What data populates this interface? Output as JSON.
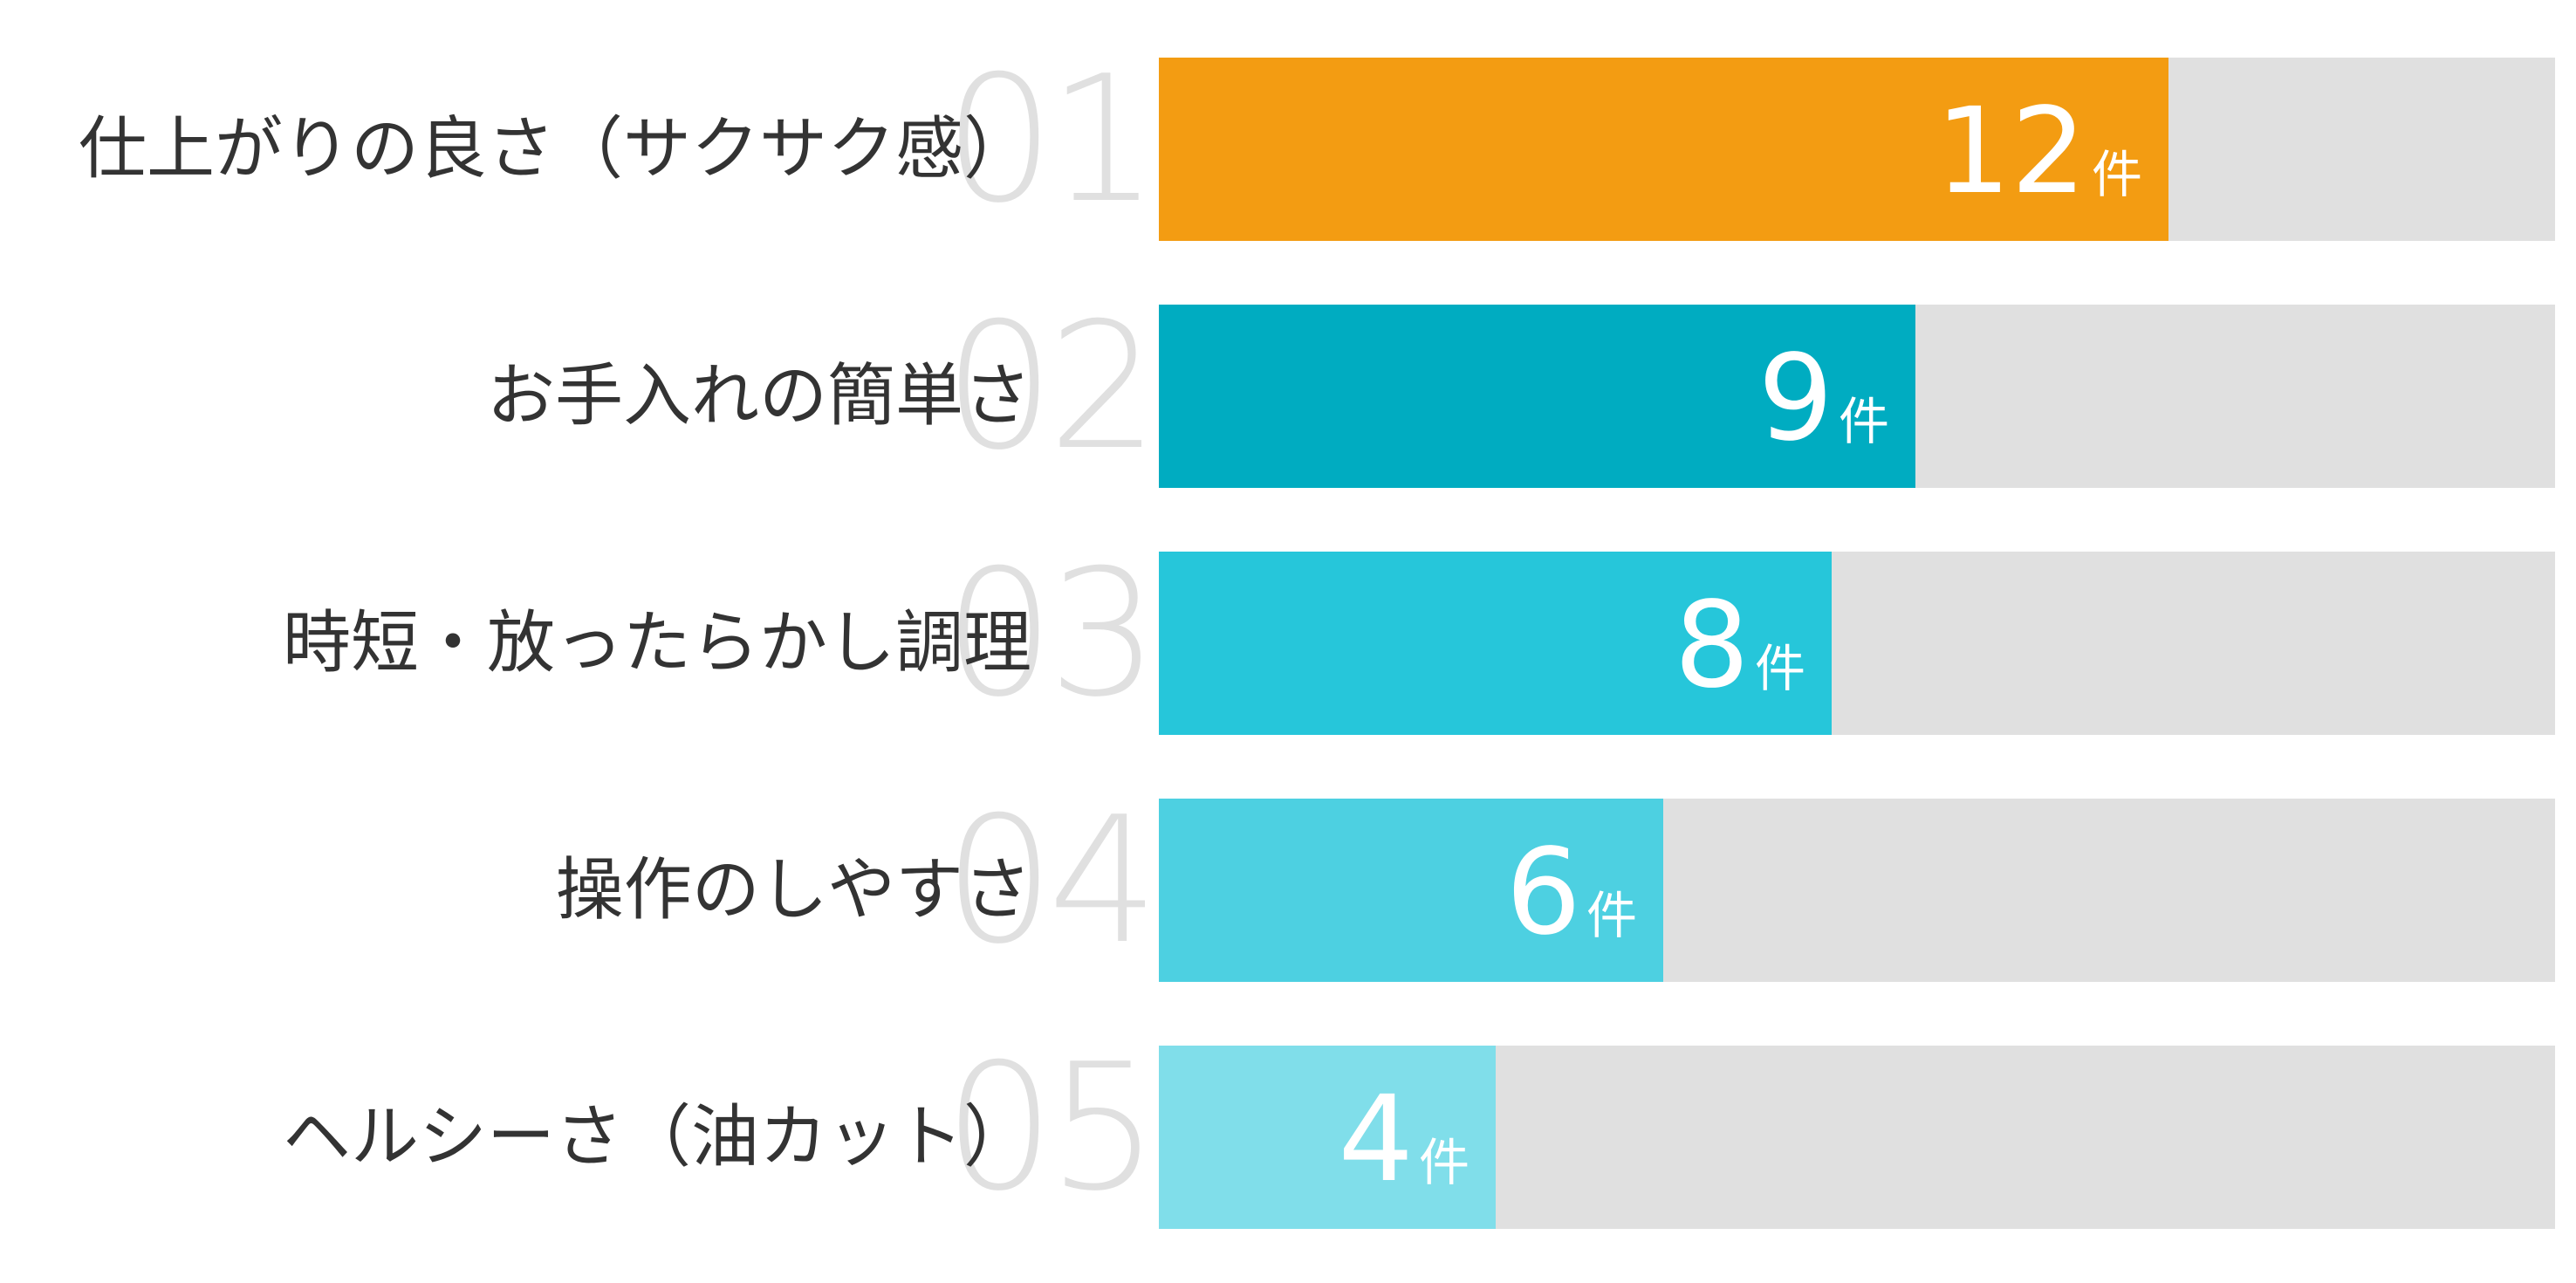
{
  "chart_data": {
    "type": "bar",
    "orientation": "horizontal",
    "categories": [
      "仕上がりの良さ（サクサク感）",
      "お手入れの簡単さ",
      "時短・放ったらかし調理",
      "操作のしやすさ",
      "ヘルシーさ（油カット）"
    ],
    "ranks": [
      "01",
      "02",
      "03",
      "04",
      "05"
    ],
    "values": [
      12,
      9,
      8,
      6,
      4
    ],
    "unit": "件",
    "xlim": [
      0,
      16.6
    ],
    "colors": [
      "#f39c12",
      "#00acc1",
      "#26c6da",
      "#4dd0e1",
      "#80deea"
    ],
    "track_color": "#e0e0e0",
    "grid": false,
    "legend": "none"
  }
}
